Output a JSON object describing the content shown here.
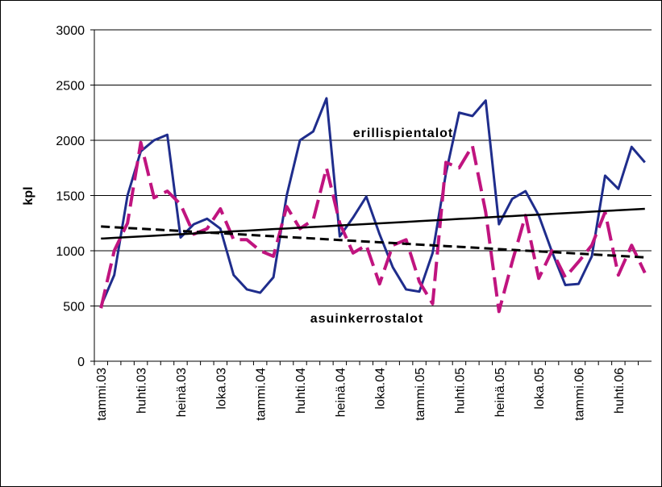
{
  "chart_data": {
    "type": "line",
    "y_label": "kpl",
    "annotations": [
      "erillispientalot",
      "asuinkerrostalot"
    ],
    "categories": [
      "tammi.03",
      null,
      null,
      "huhti.03",
      null,
      null,
      "heinä.03",
      null,
      null,
      "loka.03",
      null,
      null,
      "tammi.04",
      null,
      null,
      "huhti.04",
      null,
      null,
      "heinä.04",
      null,
      null,
      "loka.04",
      null,
      null,
      "tammi.05",
      null,
      null,
      "huhti.05",
      null,
      null,
      "heinä.05",
      null,
      null,
      "loka.05",
      null,
      null,
      "tammi.06",
      null,
      null,
      "huhti.06",
      null,
      null
    ],
    "series": [
      {
        "color": "#1f2d8c",
        "style": "solid",
        "width": 3,
        "values": [
          500,
          780,
          1500,
          1900,
          2000,
          2050,
          1120,
          1240,
          1290,
          1200,
          780,
          650,
          620,
          760,
          1500,
          2000,
          2080,
          2380,
          1130,
          1300,
          1490,
          1150,
          850,
          650,
          630,
          980,
          1700,
          2250,
          2220,
          2360,
          1240,
          1470,
          1540,
          1320,
          990,
          690,
          700,
          950,
          1680,
          1560,
          1940,
          1800
        ]
      },
      {
        "color": "#c0147f",
        "style": "longdash",
        "width": 4,
        "values": [
          480,
          1000,
          1250,
          1980,
          1480,
          1540,
          1420,
          1150,
          1200,
          1380,
          1100,
          1100,
          1000,
          950,
          1400,
          1200,
          1280,
          1750,
          1250,
          980,
          1050,
          700,
          1050,
          1100,
          720,
          520,
          1800,
          1750,
          1950,
          1350,
          450,
          900,
          1320,
          750,
          1000,
          760,
          900,
          1050,
          1350,
          780,
          1050,
          800
        ]
      },
      {
        "color": "#000000",
        "style": "solid",
        "width": 2.5,
        "values": [
          1110,
          1117,
          1123,
          1130,
          1136,
          1143,
          1150,
          1156,
          1163,
          1169,
          1176,
          1182,
          1189,
          1196,
          1202,
          1209,
          1215,
          1222,
          1229,
          1235,
          1242,
          1248,
          1255,
          1261,
          1268,
          1275,
          1281,
          1288,
          1294,
          1301,
          1308,
          1314,
          1321,
          1327,
          1334,
          1340,
          1347,
          1354,
          1360,
          1367,
          1373,
          1380
        ]
      },
      {
        "color": "#000000",
        "style": "dashed",
        "width": 3,
        "values": [
          1220,
          1213,
          1206,
          1200,
          1193,
          1186,
          1179,
          1172,
          1165,
          1159,
          1152,
          1145,
          1138,
          1131,
          1124,
          1118,
          1111,
          1104,
          1097,
          1090,
          1083,
          1077,
          1070,
          1063,
          1056,
          1049,
          1042,
          1036,
          1029,
          1022,
          1015,
          1008,
          1001,
          995,
          988,
          981,
          974,
          967,
          960,
          954,
          947,
          940
        ]
      }
    ],
    "ylim": [
      0,
      3000
    ],
    "yticks": [
      0,
      500,
      1000,
      1500,
      2000,
      2500,
      3000
    ],
    "grid": true
  }
}
